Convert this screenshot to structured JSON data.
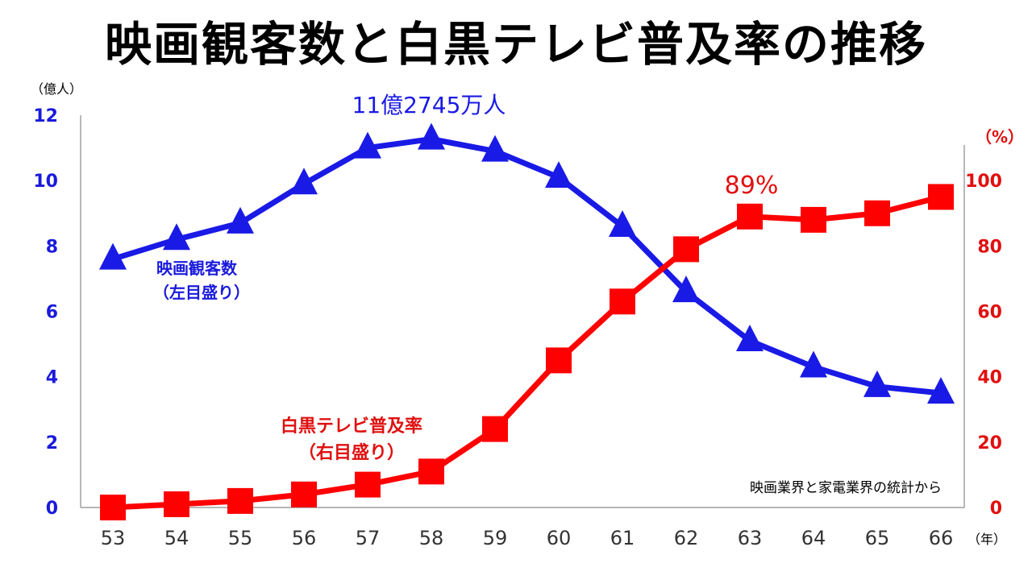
{
  "title": "映画観客数と白黒テレビ普及率の推移",
  "chart_data": {
    "type": "line",
    "title": "映画観客数と白黒テレビ普及率の推移",
    "categories": [
      "53",
      "54",
      "55",
      "56",
      "57",
      "58",
      "59",
      "60",
      "61",
      "62",
      "63",
      "64",
      "65",
      "66"
    ],
    "x_unit": "（年）",
    "left_axis": {
      "unit": "（億人）",
      "range": [
        0,
        12
      ],
      "ticks": [
        "0",
        "2",
        "4",
        "6",
        "8",
        "10",
        "12"
      ],
      "color": "#1a1adb"
    },
    "right_axis": {
      "unit": "（%）",
      "range": [
        0,
        120
      ],
      "ticks": [
        "0",
        "20",
        "40",
        "60",
        "80",
        "100"
      ],
      "color": "#e01010"
    },
    "series": [
      {
        "name": "映画観客数",
        "sub": "（左目盛り）",
        "axis": "left",
        "color": "#1a1ae6",
        "marker": "triangle",
        "values": [
          7.6,
          8.2,
          8.7,
          9.9,
          11.0,
          11.27,
          10.9,
          10.1,
          8.6,
          6.6,
          5.1,
          4.3,
          3.7,
          3.5
        ]
      },
      {
        "name": "白黒テレビ普及率",
        "sub": "（右目盛り）",
        "axis": "right",
        "color": "#ff0000",
        "marker": "square",
        "values": [
          0,
          1,
          2,
          4,
          7,
          11,
          24,
          45,
          63,
          79,
          89,
          88,
          90,
          95
        ]
      }
    ],
    "annotations": {
      "peak_label": "11億2745万人",
      "tv_label": "89%",
      "source": "映画業界と家電業界の統計から"
    },
    "grid": false,
    "legend": "inline"
  }
}
